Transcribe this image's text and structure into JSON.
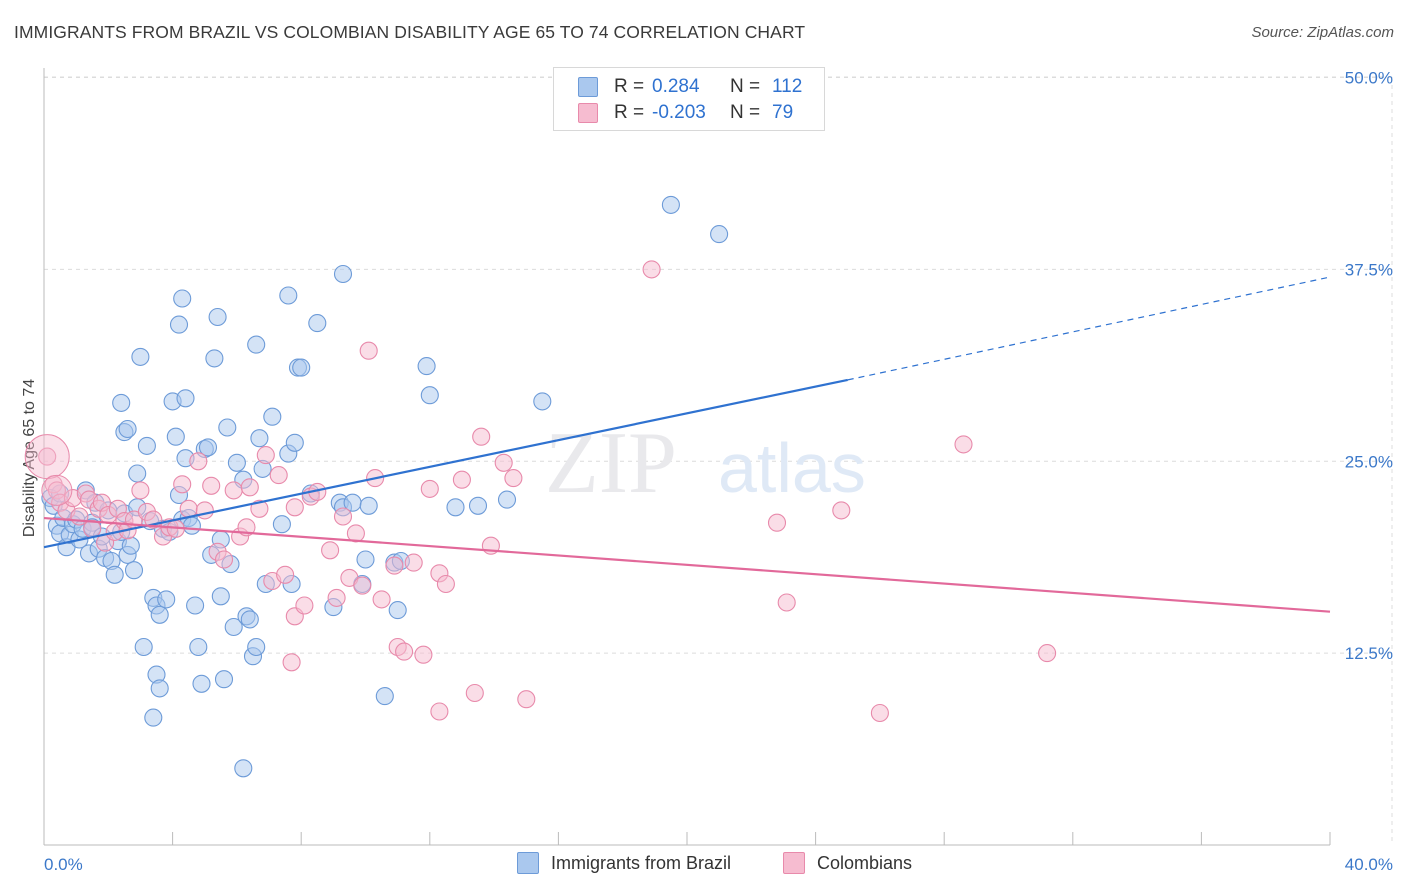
{
  "title": "IMMIGRANTS FROM BRAZIL VS COLOMBIAN DISABILITY AGE 65 TO 74 CORRELATION CHART",
  "source": "Source: ZipAtlas.com",
  "watermark": {
    "zip": "ZIP",
    "atlas": "atlas"
  },
  "colors": {
    "brazil_fill": "#aac8ee",
    "brazil_stroke": "#6d9bd8",
    "brazil_line": "#2f72d0",
    "colombian_fill": "#f6bcd0",
    "colombian_stroke": "#e88aab",
    "colombian_line": "#e2699a",
    "axis_text": "#3b78c9",
    "grid": "#dcdcdc"
  },
  "legend_top": {
    "rows": [
      {
        "r_label": "R =",
        "r_value": "0.284",
        "n_label": "N =",
        "n_value": "112"
      },
      {
        "r_label": "R =",
        "r_value": "-0.203",
        "n_label": "N =",
        "n_value": "79"
      }
    ]
  },
  "legend_bottom": [
    "Immigrants from Brazil",
    "Colombians"
  ],
  "chart_data": {
    "type": "scatter",
    "title": "IMMIGRANTS FROM BRAZIL VS COLOMBIAN DISABILITY AGE 65 TO 74 CORRELATION CHART",
    "xlabel": "",
    "ylabel": "Disability Age 65 to 74",
    "xlim": [
      0,
      40
    ],
    "ylim": [
      0,
      52.5
    ],
    "x_tick_labels": [
      "0.0%",
      "40.0%"
    ],
    "y_ticks": [
      12.5,
      25.0,
      37.5,
      50.0
    ],
    "y_tick_labels": [
      "12.5%",
      "25.0%",
      "37.5%",
      "50.0%"
    ],
    "grid": true,
    "legend_position": "bottom",
    "series": [
      {
        "name": "Immigrants from Brazil",
        "R": 0.284,
        "N": 112,
        "trend": {
          "x0": 0.0,
          "y0": 19.4,
          "x1": 25.0,
          "y1": 30.3,
          "dash_to_x": 40.0,
          "dash_y": 37.0
        },
        "points": [
          [
            0.2,
            22.6
          ],
          [
            0.3,
            22.1
          ],
          [
            0.4,
            20.8
          ],
          [
            0.5,
            20.3
          ],
          [
            0.5,
            22.9
          ],
          [
            0.6,
            21.3
          ],
          [
            0.7,
            19.4
          ],
          [
            0.8,
            20.2
          ],
          [
            0.9,
            20.9
          ],
          [
            1.0,
            21.2
          ],
          [
            1.1,
            19.9
          ],
          [
            1.2,
            20.6
          ],
          [
            1.3,
            23.1
          ],
          [
            1.4,
            19.0
          ],
          [
            1.5,
            21.0
          ],
          [
            1.5,
            20.7
          ],
          [
            1.6,
            22.3
          ],
          [
            1.7,
            19.3
          ],
          [
            1.8,
            20.1
          ],
          [
            1.9,
            18.7
          ],
          [
            2.0,
            21.8
          ],
          [
            2.1,
            18.5
          ],
          [
            2.2,
            17.6
          ],
          [
            2.3,
            19.8
          ],
          [
            2.4,
            20.4
          ],
          [
            2.5,
            21.6
          ],
          [
            2.6,
            18.9
          ],
          [
            2.7,
            19.5
          ],
          [
            2.8,
            17.9
          ],
          [
            2.9,
            24.2
          ],
          [
            2.5,
            26.9
          ],
          [
            2.6,
            27.1
          ],
          [
            3.0,
            31.8
          ],
          [
            3.2,
            26.0
          ],
          [
            3.3,
            21.1
          ],
          [
            3.4,
            16.1
          ],
          [
            3.5,
            15.6
          ],
          [
            3.6,
            15.0
          ],
          [
            3.7,
            20.6
          ],
          [
            3.8,
            16.0
          ],
          [
            3.1,
            12.9
          ],
          [
            3.5,
            11.1
          ],
          [
            3.6,
            10.2
          ],
          [
            3.4,
            8.3
          ],
          [
            3.9,
            20.4
          ],
          [
            4.0,
            28.9
          ],
          [
            4.1,
            26.6
          ],
          [
            4.2,
            22.8
          ],
          [
            4.3,
            21.2
          ],
          [
            4.4,
            25.2
          ],
          [
            4.2,
            33.9
          ],
          [
            4.3,
            35.6
          ],
          [
            4.5,
            21.3
          ],
          [
            4.7,
            15.6
          ],
          [
            4.8,
            12.9
          ],
          [
            4.9,
            10.5
          ],
          [
            5.0,
            25.8
          ],
          [
            5.1,
            25.9
          ],
          [
            5.2,
            18.9
          ],
          [
            5.3,
            31.7
          ],
          [
            5.4,
            34.4
          ],
          [
            5.5,
            16.2
          ],
          [
            5.6,
            10.8
          ],
          [
            5.7,
            27.2
          ],
          [
            5.8,
            18.3
          ],
          [
            5.9,
            14.2
          ],
          [
            6.0,
            24.9
          ],
          [
            6.2,
            23.8
          ],
          [
            6.3,
            14.9
          ],
          [
            6.4,
            14.7
          ],
          [
            6.5,
            12.3
          ],
          [
            6.6,
            12.9
          ],
          [
            6.7,
            26.5
          ],
          [
            6.8,
            24.5
          ],
          [
            6.9,
            17.0
          ],
          [
            7.1,
            27.9
          ],
          [
            7.4,
            20.9
          ],
          [
            7.6,
            25.5
          ],
          [
            7.6,
            35.8
          ],
          [
            7.7,
            17.0
          ],
          [
            7.8,
            26.2
          ],
          [
            7.9,
            31.1
          ],
          [
            8.0,
            31.1
          ],
          [
            8.3,
            22.9
          ],
          [
            8.5,
            34.0
          ],
          [
            9.0,
            15.5
          ],
          [
            9.2,
            22.3
          ],
          [
            9.3,
            22.0
          ],
          [
            9.6,
            22.3
          ],
          [
            9.9,
            17.0
          ],
          [
            10.0,
            18.6
          ],
          [
            10.1,
            22.1
          ],
          [
            10.6,
            9.7
          ],
          [
            10.9,
            18.4
          ],
          [
            11.0,
            15.3
          ],
          [
            11.1,
            18.5
          ],
          [
            12.0,
            29.3
          ],
          [
            11.9,
            31.2
          ],
          [
            12.8,
            22.0
          ],
          [
            13.5,
            22.1
          ],
          [
            14.4,
            22.5
          ],
          [
            15.5,
            28.9
          ],
          [
            19.5,
            41.7
          ],
          [
            21.0,
            39.8
          ],
          [
            6.2,
            5.0
          ],
          [
            5.5,
            19.9
          ],
          [
            4.6,
            20.8
          ],
          [
            9.3,
            37.2
          ],
          [
            4.4,
            29.1
          ],
          [
            2.4,
            28.8
          ],
          [
            6.6,
            32.6
          ],
          [
            2.9,
            22.0
          ]
        ]
      },
      {
        "name": "Colombians",
        "R": -0.203,
        "N": 79,
        "trend": {
          "x0": 0.0,
          "y0": 21.3,
          "x1": 40.0,
          "y1": 15.2
        },
        "points": [
          [
            0.1,
            25.3
          ],
          [
            0.3,
            23.5
          ],
          [
            0.4,
            23.1
          ],
          [
            0.5,
            22.3
          ],
          [
            0.7,
            21.8
          ],
          [
            0.9,
            22.6
          ],
          [
            1.1,
            21.4
          ],
          [
            1.3,
            22.9
          ],
          [
            1.4,
            22.5
          ],
          [
            1.5,
            20.6
          ],
          [
            1.7,
            21.9
          ],
          [
            1.8,
            22.3
          ],
          [
            1.9,
            19.7
          ],
          [
            2.0,
            21.5
          ],
          [
            2.2,
            20.4
          ],
          [
            2.3,
            21.9
          ],
          [
            2.5,
            21.1
          ],
          [
            2.6,
            20.5
          ],
          [
            2.8,
            21.2
          ],
          [
            3.0,
            23.1
          ],
          [
            3.2,
            21.7
          ],
          [
            3.4,
            21.2
          ],
          [
            3.7,
            20.1
          ],
          [
            3.9,
            20.7
          ],
          [
            4.1,
            20.6
          ],
          [
            4.3,
            23.5
          ],
          [
            4.5,
            21.9
          ],
          [
            4.8,
            25.0
          ],
          [
            5.0,
            21.8
          ],
          [
            5.2,
            23.4
          ],
          [
            5.4,
            19.1
          ],
          [
            5.6,
            18.6
          ],
          [
            5.9,
            23.1
          ],
          [
            6.1,
            20.1
          ],
          [
            6.3,
            20.7
          ],
          [
            6.4,
            23.3
          ],
          [
            6.7,
            21.9
          ],
          [
            6.9,
            25.4
          ],
          [
            7.1,
            17.2
          ],
          [
            7.3,
            24.1
          ],
          [
            7.5,
            17.6
          ],
          [
            7.7,
            11.9
          ],
          [
            7.8,
            14.9
          ],
          [
            8.1,
            15.6
          ],
          [
            8.3,
            22.7
          ],
          [
            8.5,
            23.0
          ],
          [
            8.9,
            19.2
          ],
          [
            9.1,
            16.1
          ],
          [
            9.3,
            21.4
          ],
          [
            9.5,
            17.4
          ],
          [
            9.7,
            20.3
          ],
          [
            9.9,
            16.9
          ],
          [
            10.1,
            32.2
          ],
          [
            10.3,
            23.9
          ],
          [
            10.5,
            16.0
          ],
          [
            10.9,
            18.2
          ],
          [
            11.0,
            12.9
          ],
          [
            11.2,
            12.6
          ],
          [
            11.5,
            18.4
          ],
          [
            11.8,
            12.4
          ],
          [
            12.0,
            23.2
          ],
          [
            12.3,
            17.7
          ],
          [
            12.5,
            17.0
          ],
          [
            13.0,
            23.8
          ],
          [
            13.4,
            9.9
          ],
          [
            13.6,
            26.6
          ],
          [
            13.9,
            19.5
          ],
          [
            14.3,
            24.9
          ],
          [
            14.6,
            23.9
          ],
          [
            15.0,
            9.5
          ],
          [
            18.9,
            37.5
          ],
          [
            22.8,
            21.0
          ],
          [
            23.1,
            15.8
          ],
          [
            24.8,
            21.8
          ],
          [
            26.0,
            8.6
          ],
          [
            28.6,
            26.1
          ],
          [
            31.2,
            12.5
          ],
          [
            7.8,
            22.0
          ],
          [
            12.3,
            8.7
          ]
        ]
      }
    ]
  }
}
